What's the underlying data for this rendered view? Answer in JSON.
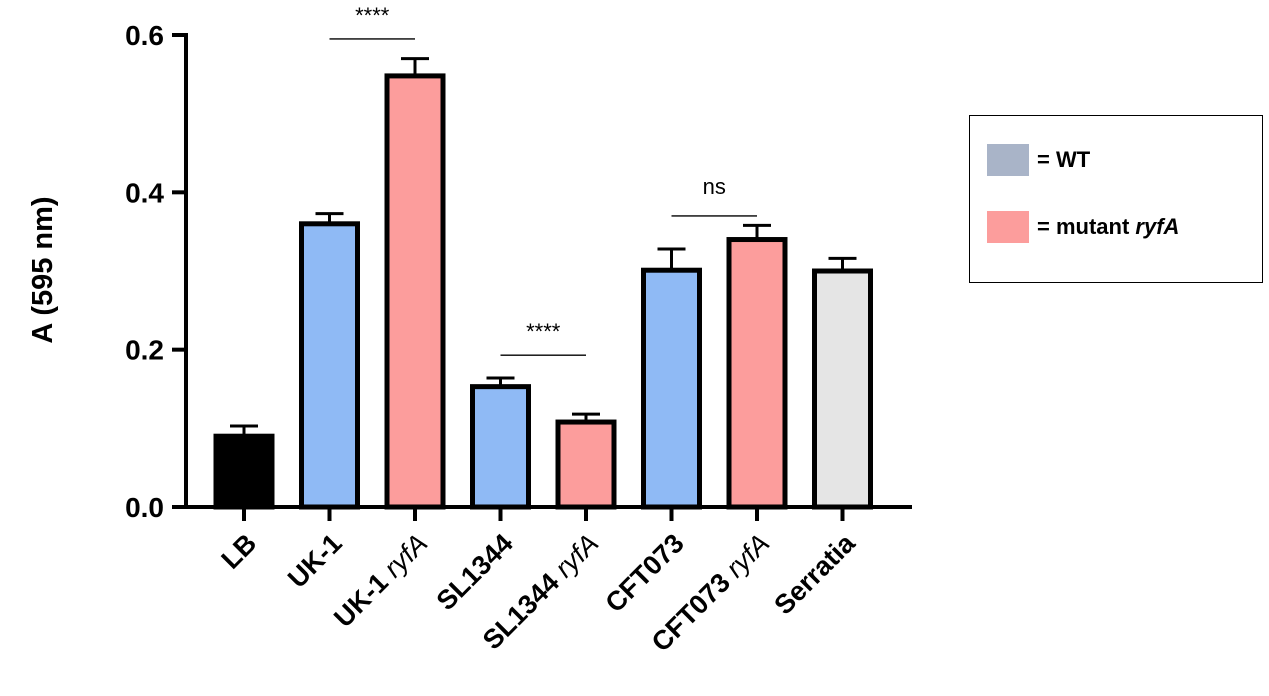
{
  "chart_data": {
    "type": "bar",
    "ylabel": "A (595 nm)",
    "ylim": [
      0,
      0.6
    ],
    "yticks": [
      "0.0",
      "0.2",
      "0.4",
      "0.6"
    ],
    "ytick_values": [
      0,
      0.2,
      0.4,
      0.6
    ],
    "categories": [
      {
        "main": "LB",
        "italic": ""
      },
      {
        "main": "UK-1",
        "italic": ""
      },
      {
        "main": "UK-1 ",
        "italic": "ryfA"
      },
      {
        "main": "SL1344",
        "italic": ""
      },
      {
        "main": "SL1344 ",
        "italic": "ryfA"
      },
      {
        "main": "CFT073",
        "italic": ""
      },
      {
        "main": "CFT073 ",
        "italic": "ryfA"
      },
      {
        "main": "Serratia",
        "italic": ""
      }
    ],
    "values": [
      0.09,
      0.36,
      0.548,
      0.153,
      0.108,
      0.301,
      0.34,
      0.3
    ],
    "errors": [
      0.013,
      0.013,
      0.022,
      0.011,
      0.01,
      0.027,
      0.018,
      0.016
    ],
    "colors": [
      "#000000",
      "#8fbaf5",
      "#fc9d9c",
      "#8fbaf5",
      "#fc9d9c",
      "#8fbaf5",
      "#fc9d9c",
      "#e5e5e5"
    ],
    "significance": [
      {
        "from": 1,
        "to": 2,
        "label": "****",
        "level": 0.595
      },
      {
        "from": 3,
        "to": 4,
        "label": "****",
        "level": 0.193
      },
      {
        "from": 5,
        "to": 6,
        "label": "ns",
        "level": 0.37
      }
    ]
  },
  "legend": {
    "items": [
      {
        "text": "= WT",
        "italic": "",
        "color": "#a9b4c8"
      },
      {
        "text": "= mutant ",
        "italic": "ryfA",
        "color": "#fc9d9c"
      }
    ]
  }
}
